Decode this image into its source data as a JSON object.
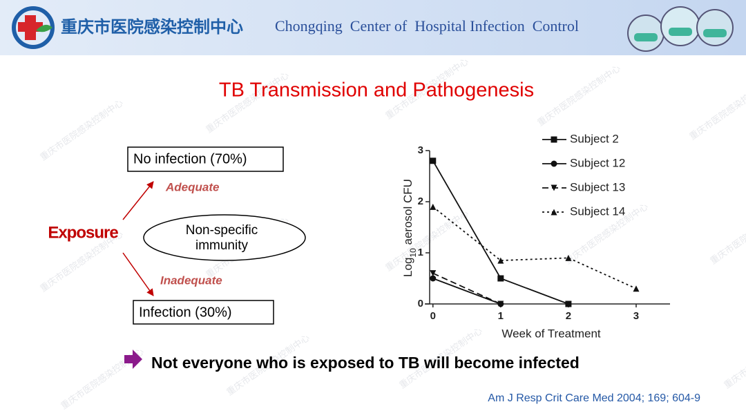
{
  "header": {
    "title_cn": "重庆市医院感染控制中心",
    "title_en": "Chongqing  Center of  Hospital Infection  Control"
  },
  "watermark": "重庆市医院感染控制中心",
  "slide": {
    "title": "TB Transmission and Pathogenesis",
    "exposure": "Exposure",
    "immunity": [
      "Non-specific",
      "immunity"
    ],
    "adequate": "Adequate",
    "inadequate": "Inadequate",
    "no_infection": "No infection (70%)",
    "infection": "Infection (30%)",
    "statement": "Not everyone who is exposed to TB will become infected",
    "citation": "Am J Resp Crit Care Med 2004; 169; 604-9"
  },
  "chart_data": {
    "type": "line",
    "x": [
      0,
      1,
      2,
      3
    ],
    "x_label": "Week of Treatment",
    "y_label": [
      "Log",
      "10",
      " aerosol CFU"
    ],
    "xlim": [
      -0.12,
      3.5
    ],
    "xticks": [
      0,
      1,
      2,
      3
    ],
    "ylim": [
      0,
      3
    ],
    "yticks": [
      0,
      1,
      2,
      3
    ],
    "series": [
      {
        "name": "Subject 2",
        "color": "#111111",
        "dash": "solid",
        "marker": "square",
        "values": [
          2.8,
          0.5,
          0,
          null
        ]
      },
      {
        "name": "Subject 12",
        "color": "#111111",
        "dash": "solid",
        "marker": "circle",
        "values": [
          0.5,
          0,
          null,
          null
        ]
      },
      {
        "name": "Subject 13",
        "color": "#111111",
        "dash": "dashed",
        "marker": "triangle-down",
        "values": [
          0.6,
          0,
          null,
          null
        ]
      },
      {
        "name": "Subject 14",
        "color": "#111111",
        "dash": "dotted",
        "marker": "triangle-up",
        "values": [
          1.9,
          0.85,
          0.9,
          0.3
        ]
      }
    ]
  }
}
